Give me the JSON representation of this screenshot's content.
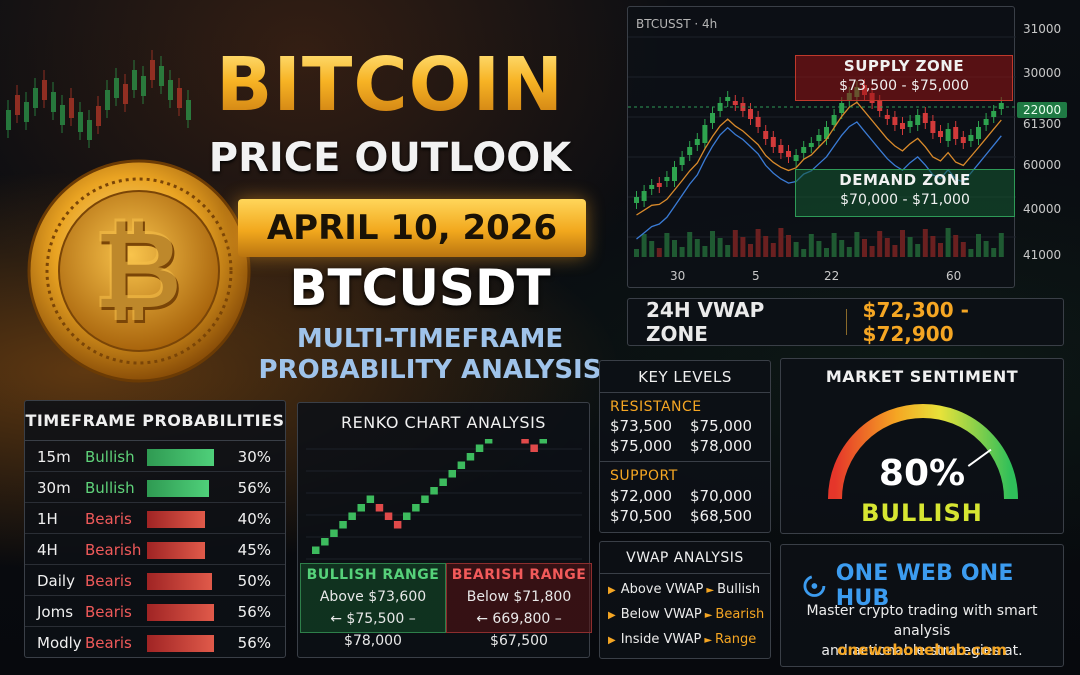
{
  "title": {
    "main": "BITCOIN",
    "sub": "PRICE OUTLOOK",
    "date": "APRIL 10, 2026",
    "pair": "BTCUSDT",
    "subtitle_line1": "MULTI-TIMEFRAME",
    "subtitle_line2": "PROBABILITY ANALYSIS"
  },
  "price_chart": {
    "symbol_label": "BTCUSST · 4h",
    "supply_zone": {
      "label": "SUPPLY ZONE",
      "range": "$73,500 - $75,000"
    },
    "demand_zone": {
      "label": "DEMAND ZONE",
      "range": "$70,000 - $71,000"
    },
    "price_axis": [
      "31000",
      "30000",
      "22000",
      "61300",
      "60000",
      "40000",
      "41000"
    ],
    "x_axis": [
      "30",
      "5",
      "22",
      "60"
    ],
    "colors": {
      "up": "#2ea34f",
      "down": "#d23a3a",
      "line_orange": "#d98a2b",
      "line_blue": "#3a7bd5"
    }
  },
  "vwap_zone": {
    "label": "24H VWAP ZONE",
    "value": "$72,300 - $72,900"
  },
  "timeframes": {
    "heading": "TIMEFRAME PROBABILITIES",
    "rows": [
      {
        "tf": "15m",
        "bias": "Bullish",
        "pct": "30%",
        "type": "bull",
        "fill": 0.78
      },
      {
        "tf": "30m",
        "bias": "Bullish",
        "pct": "56%",
        "type": "bull",
        "fill": 0.72
      },
      {
        "tf": "1H",
        "bias": "Bearis",
        "pct": "40%",
        "type": "bear",
        "fill": 0.68
      },
      {
        "tf": "4H",
        "bias": "Bearish",
        "pct": "45%",
        "type": "bear",
        "fill": 0.68
      },
      {
        "tf": "Daily",
        "bias": "Bearis",
        "pct": "50%",
        "type": "bear",
        "fill": 0.75
      },
      {
        "tf": "Joms",
        "bias": "Bearis",
        "pct": "56%",
        "type": "bear",
        "fill": 0.78
      },
      {
        "tf": "Modly",
        "bias": "Bearis",
        "pct": "56%",
        "type": "bear",
        "fill": 0.78
      }
    ]
  },
  "renko": {
    "heading": "RENKO CHART ANALYSIS",
    "bull_range": {
      "label": "BULLISH RANGE",
      "line1": "Above $73,600",
      "line2": "$75,500 – $78,000"
    },
    "bear_range": {
      "label": "BEARISH RANGE",
      "line1": "Below $71,800",
      "line2": "669,800 – $67,500"
    },
    "bricks": [
      "up",
      "up",
      "up",
      "up",
      "up",
      "up",
      "up",
      "down",
      "down",
      "down",
      "up",
      "up",
      "up",
      "up",
      "up",
      "up",
      "up",
      "up",
      "up",
      "up",
      "up",
      "up",
      "down",
      "down",
      "down",
      "up",
      "up",
      "up"
    ]
  },
  "key_levels": {
    "heading": "KEY LEVELS",
    "resistance_label": "RESISTANCE",
    "resistance": [
      "$73,500",
      "$75,000",
      "$75,000",
      "$78,000"
    ],
    "support_label": "SUPPORT",
    "support": [
      "$72,000",
      "$70,000",
      "$70,500",
      "$68,500"
    ]
  },
  "vwap_analysis": {
    "heading": "VWAP ANALYSIS",
    "rows": [
      {
        "cond": "Above VWAP",
        "result": "Bullish",
        "accent": false
      },
      {
        "cond": "Below VWAP",
        "result": "Bearish",
        "accent": true
      },
      {
        "cond": "Inside VWAP",
        "result": "Range",
        "accent": true
      }
    ]
  },
  "sentiment": {
    "heading": "MARKET SENTIMENT",
    "value": "80%",
    "level": 0.8,
    "label": "BULLISH"
  },
  "brand": {
    "name": "ONE WEB ONE HUB",
    "tagline_line1": "Master crypto trading with smart analysis",
    "tagline_line2": "and actionable strategies at.",
    "url": "onewebonehub.com"
  }
}
